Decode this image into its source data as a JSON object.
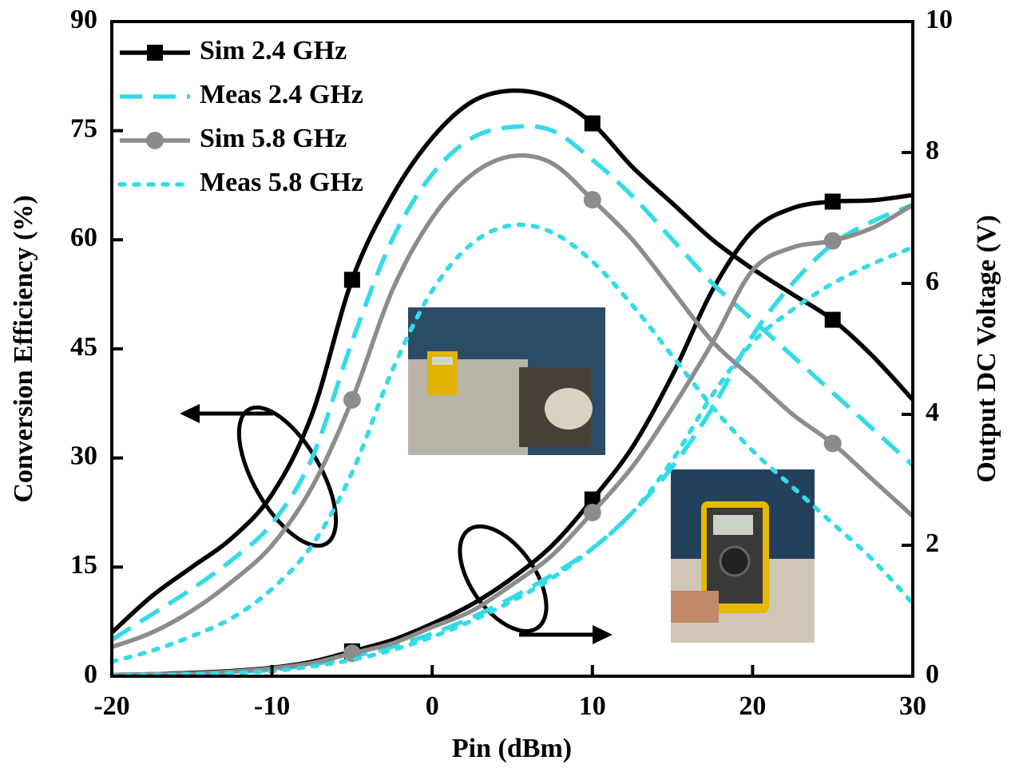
{
  "chart_data": {
    "type": "line",
    "xlabel": "Pin (dBm)",
    "ylabel": "Conversion Efficiency (%)",
    "y2label": "Output DC Voltage (V)",
    "x": [
      -20,
      -17.5,
      -15,
      -12.5,
      -10,
      -7.5,
      -5,
      -2.5,
      0,
      2.5,
      5,
      7.5,
      10,
      12.5,
      15,
      17.5,
      20,
      22.5,
      25,
      27.5,
      30
    ],
    "xlim": [
      -20,
      30
    ],
    "xticks": [
      -20,
      -10,
      0,
      10,
      20,
      30
    ],
    "ylim": [
      0,
      90
    ],
    "yticks": [
      0,
      15,
      30,
      45,
      60,
      75,
      90
    ],
    "y2lim": [
      0,
      10
    ],
    "y2ticks": [
      0,
      2,
      4,
      6,
      8,
      10
    ],
    "legend": "upper left",
    "series": [
      {
        "name": "Sim 2.4 GHz",
        "color": "#000000",
        "dash": "solid",
        "marker": "square",
        "marker_x": [
          -5,
          10,
          25
        ],
        "values": [
          6,
          11,
          15,
          19,
          25,
          36,
          54.5,
          66,
          74,
          79,
          80.5,
          79.5,
          76,
          70,
          65,
          60,
          56,
          52.5,
          49,
          44,
          38
        ],
        "y2_values": [
          0.02,
          0.03,
          0.05,
          0.08,
          0.13,
          0.22,
          0.38,
          0.55,
          0.8,
          1.1,
          1.5,
          2.0,
          2.7,
          3.5,
          4.6,
          5.9,
          6.8,
          7.15,
          7.25,
          7.27,
          7.35
        ]
      },
      {
        "name": "Meas 2.4 GHz",
        "color": "#33dbe6",
        "dash": "dashed",
        "values": [
          5,
          8.5,
          12,
          16,
          21,
          30,
          46,
          60,
          69,
          74,
          75.5,
          75,
          71,
          66,
          60,
          54,
          49,
          44,
          39,
          34,
          29
        ],
        "y2_values": [
          0.02,
          0.03,
          0.04,
          0.06,
          0.1,
          0.18,
          0.3,
          0.45,
          0.65,
          0.9,
          1.2,
          1.55,
          1.95,
          2.5,
          3.2,
          4.1,
          5.2,
          6.0,
          6.6,
          6.95,
          7.2
        ]
      },
      {
        "name": "Sim 5.8 GHz",
        "color": "#8c8c8c",
        "dash": "solid",
        "marker": "circle",
        "marker_x": [
          -5,
          10,
          25
        ],
        "values": [
          4,
          6,
          9,
          13,
          18,
          26,
          38,
          53,
          63,
          69,
          71.5,
          70.5,
          65.5,
          60,
          53,
          46,
          41,
          36,
          32,
          27,
          22
        ],
        "y2_values": [
          0.02,
          0.03,
          0.04,
          0.07,
          0.12,
          0.2,
          0.35,
          0.5,
          0.75,
          1.0,
          1.4,
          1.85,
          2.5,
          3.2,
          4.1,
          5.1,
          6.2,
          6.55,
          6.65,
          6.85,
          7.2
        ]
      },
      {
        "name": "Meas 5.8 GHz",
        "color": "#33dbe6",
        "dash": "dotted",
        "values": [
          2,
          3.5,
          5.5,
          8,
          12,
          18,
          28,
          42,
          53,
          59.5,
          62,
          61,
          57,
          51,
          44,
          37,
          31,
          26,
          21,
          16,
          10
        ],
        "y2_values": [
          0.01,
          0.02,
          0.03,
          0.05,
          0.08,
          0.15,
          0.25,
          0.4,
          0.6,
          0.85,
          1.15,
          1.5,
          1.95,
          2.5,
          3.3,
          4.3,
          5.1,
          5.6,
          6.0,
          6.3,
          6.55
        ]
      }
    ]
  }
}
